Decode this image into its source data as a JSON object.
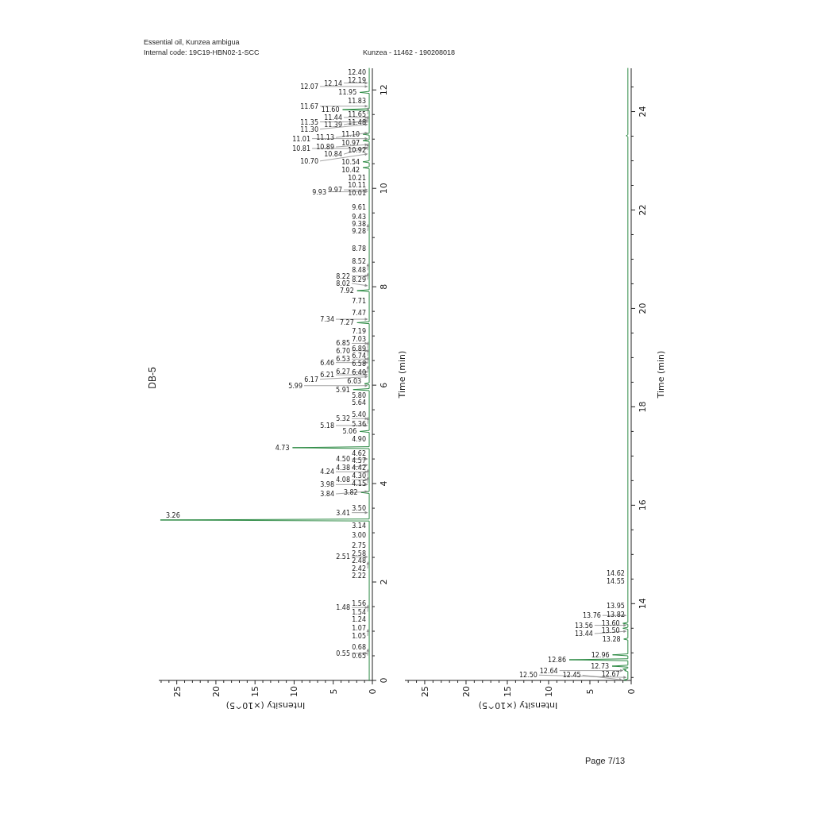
{
  "chart_data": [
    {
      "type": "line",
      "title": "Essential oil, Kunzea ambigua",
      "subtitle": "Internal code: 19C19-HBN02-1-SCC",
      "xlabel": "Intensity (×10^5)",
      "ylabel": "Time (min)",
      "color": "#2e8b45",
      "x": [
        0.4,
        0.4,
        27.1,
        0.4,
        0.4,
        1.45,
        0.4,
        0.4,
        10.2,
        0.4,
        0.4,
        1.6,
        0.4,
        0.4,
        2.45,
        0.4,
        0.4,
        1,
        0.4,
        0.4,
        1.95,
        0.4,
        0.4,
        1.95,
        0.4,
        0.4,
        1.2,
        0.4,
        0.4,
        1.2,
        0.4,
        0.4,
        1.2,
        0.4,
        0.4,
        1.2,
        0.4,
        0.4,
        3.8,
        0.4,
        0.4,
        1.6,
        0.4,
        0.4
      ],
      "values": [
        0,
        3.24,
        3.26,
        3.28,
        3.8,
        3.82,
        3.84,
        4.71,
        4.73,
        4.75,
        5.04,
        5.06,
        5.08,
        5.89,
        5.91,
        5.93,
        6.01,
        6.03,
        6.05,
        7.25,
        7.27,
        7.29,
        7.9,
        7.92,
        7.94,
        10.4,
        10.42,
        10.44,
        10.52,
        10.54,
        10.56,
        10.95,
        10.97,
        10.99,
        11.08,
        11.1,
        11.12,
        11.58,
        11.6,
        11.62,
        11.93,
        11.95,
        11.97,
        12.44
      ],
      "xlim": [
        27.3,
        0
      ],
      "ylim": [
        0,
        12.44
      ],
      "xticks": [
        {
          "value": 27,
          "label": null
        },
        {
          "value": 26,
          "label": null
        },
        25,
        {
          "value": 24,
          "label": null
        },
        {
          "value": 23,
          "label": null
        },
        {
          "value": 22,
          "label": null
        },
        {
          "value": 21,
          "label": null
        },
        20,
        {
          "value": 19,
          "label": null
        },
        {
          "value": 18,
          "label": null
        },
        {
          "value": 17,
          "label": null
        },
        {
          "value": 16,
          "label": null
        },
        15,
        {
          "value": 14,
          "label": null
        },
        {
          "value": 13,
          "label": null
        },
        {
          "value": 12,
          "label": null
        },
        {
          "value": 11,
          "label": null
        },
        10,
        {
          "value": 9,
          "label": null
        },
        {
          "value": 8,
          "label": null
        },
        {
          "value": 7,
          "label": null
        },
        {
          "value": 6,
          "label": null
        },
        5,
        {
          "value": 4,
          "label": null
        },
        {
          "value": 3,
          "label": null
        },
        {
          "value": 2,
          "label": null
        },
        {
          "value": 1,
          "label": null
        },
        0
      ],
      "yticks": [
        0,
        {
          "value": 0.5,
          "label": null
        },
        {
          "value": 1,
          "label": null
        },
        {
          "value": 1.5,
          "label": null
        },
        2,
        {
          "value": 2.5,
          "label": null
        },
        {
          "value": 3,
          "label": null
        },
        {
          "value": 3.5,
          "label": null
        },
        4,
        {
          "value": 4.5,
          "label": null
        },
        {
          "value": 5,
          "label": null
        },
        {
          "value": 5.5,
          "label": null
        },
        6,
        {
          "value": 6.5,
          "label": null
        },
        {
          "value": 7,
          "label": null
        },
        {
          "value": 7.5,
          "label": null
        },
        8,
        {
          "value": 8.5,
          "label": null
        },
        {
          "value": 9,
          "label": null
        },
        {
          "value": 9.5,
          "label": null
        },
        10,
        {
          "value": 10.5,
          "label": null
        },
        {
          "value": 11,
          "label": null
        },
        {
          "value": 11.5,
          "label": null
        },
        12
      ],
      "annotations": [
        "Kunzea - 11462 - 190208018",
        "DB-5",
        "Page 7/13",
        {
          "text": "12.40",
          "x": 0.4,
          "y": 12.4
        },
        {
          "text": "12.19",
          "x": 0.4,
          "y": 12.19
        },
        {
          "text": "12.14",
          "x": 0.4,
          "y": 12.14
        },
        {
          "text": "12.07",
          "x": 0.4,
          "y": 12.07
        },
        {
          "text": "11.95",
          "x": 1.6,
          "y": 11.95
        },
        {
          "text": "11.83",
          "x": 0.4,
          "y": 11.83
        },
        {
          "text": "11.67",
          "x": 0.4,
          "y": 11.67
        },
        {
          "text": "11.65",
          "x": 0.4,
          "y": 11.65
        },
        {
          "text": "11.60",
          "x": 3.8,
          "y": 11.6
        },
        {
          "text": "11.48",
          "x": 0.4,
          "y": 11.48
        },
        {
          "text": "11.44",
          "x": 0.4,
          "y": 11.44
        },
        {
          "text": "11.39",
          "x": 0.4,
          "y": 11.39
        },
        {
          "text": "11.35",
          "x": 0.4,
          "y": 11.35
        },
        {
          "text": "11.30",
          "x": 0.4,
          "y": 11.3
        },
        {
          "text": "11.13",
          "x": 0.4,
          "y": 11.13
        },
        {
          "text": "11.10",
          "x": 1.2,
          "y": 11.1
        },
        {
          "text": "11.01",
          "x": 0.4,
          "y": 11.01
        },
        {
          "text": "10.97",
          "x": 1.2,
          "y": 10.97
        },
        {
          "text": "10.92",
          "x": 0.4,
          "y": 10.92
        },
        {
          "text": "10.89",
          "x": 0.4,
          "y": 10.89
        },
        {
          "text": "10.84",
          "x": 0.4,
          "y": 10.84
        },
        {
          "text": "10.81",
          "x": 0.4,
          "y": 10.81
        },
        {
          "text": "10.70",
          "x": 0.4,
          "y": 10.7
        },
        {
          "text": "10.54",
          "x": 1.2,
          "y": 10.54
        },
        {
          "text": "10.42",
          "x": 1.2,
          "y": 10.42
        },
        {
          "text": "10.21",
          "x": 0.4,
          "y": 10.21
        },
        {
          "text": "10.11",
          "x": 0.4,
          "y": 10.11
        },
        {
          "text": "10.01",
          "x": 0.4,
          "y": 10.01
        },
        {
          "text": "9.97",
          "x": 0.4,
          "y": 9.97
        },
        {
          "text": "9.93",
          "x": 0.4,
          "y": 9.93
        },
        {
          "text": "9.61",
          "x": 0.4,
          "y": 9.61
        },
        {
          "text": "9.43",
          "x": 0.4,
          "y": 9.43
        },
        {
          "text": "9.38",
          "x": 0.4,
          "y": 9.38
        },
        {
          "text": "9.28",
          "x": 0.4,
          "y": 9.28
        },
        {
          "text": "8.78",
          "x": 0.4,
          "y": 8.78
        },
        {
          "text": "8.52",
          "x": 0.4,
          "y": 8.52
        },
        {
          "text": "8.48",
          "x": 0.4,
          "y": 8.48
        },
        {
          "text": "8.29",
          "x": 0.4,
          "y": 8.29
        },
        {
          "text": "8.22",
          "x": 0.4,
          "y": 8.22
        },
        {
          "text": "8.02",
          "x": 0.4,
          "y": 8.02
        },
        {
          "text": "7.92",
          "x": 1.95,
          "y": 7.92
        },
        {
          "text": "7.71",
          "x": 0.4,
          "y": 7.71
        },
        {
          "text": "7.47",
          "x": 0.4,
          "y": 7.47
        },
        {
          "text": "7.34",
          "x": 0.4,
          "y": 7.34
        },
        {
          "text": "7.27",
          "x": 1.95,
          "y": 7.27
        },
        {
          "text": "7.19",
          "x": 0.4,
          "y": 7.19
        },
        {
          "text": "7.03",
          "x": 0.4,
          "y": 7.03
        },
        {
          "text": "6.89",
          "x": 0.4,
          "y": 6.89
        },
        {
          "text": "6.85",
          "x": 0.4,
          "y": 6.85
        },
        {
          "text": "6.74",
          "x": 0.4,
          "y": 6.74
        },
        {
          "text": "6.70",
          "x": 0.4,
          "y": 6.7
        },
        {
          "text": "6.58",
          "x": 0.4,
          "y": 6.58
        },
        {
          "text": "6.53",
          "x": 0.4,
          "y": 6.53
        },
        {
          "text": "6.46",
          "x": 0.4,
          "y": 6.46
        },
        {
          "text": "6.40",
          "x": 0.4,
          "y": 6.4
        },
        {
          "text": "6.27",
          "x": 0.4,
          "y": 6.27
        },
        {
          "text": "6.21",
          "x": 0.4,
          "y": 6.21
        },
        {
          "text": "6.17",
          "x": 0.4,
          "y": 6.17
        },
        {
          "text": "6.03",
          "x": 1,
          "y": 6.03
        },
        {
          "text": "5.99",
          "x": 0.4,
          "y": 5.99
        },
        {
          "text": "5.91",
          "x": 2.45,
          "y": 5.91
        },
        {
          "text": "5.80",
          "x": 0.4,
          "y": 5.8
        },
        {
          "text": "5.64",
          "x": 0.4,
          "y": 5.64
        },
        {
          "text": "5.40",
          "x": 0.4,
          "y": 5.4
        },
        {
          "text": "5.36",
          "x": 0.4,
          "y": 5.36
        },
        {
          "text": "5.32",
          "x": 0.4,
          "y": 5.32
        },
        {
          "text": "5.18",
          "x": 0.4,
          "y": 5.18
        },
        {
          "text": "5.06",
          "x": 1.6,
          "y": 5.06
        },
        {
          "text": "4.90",
          "x": 0.4,
          "y": 4.9
        },
        {
          "text": "4.73",
          "x": 10.2,
          "y": 4.73
        },
        {
          "text": "4.62",
          "x": 0.4,
          "y": 4.62
        },
        {
          "text": "4.57",
          "x": 0.4,
          "y": 4.57
        },
        {
          "text": "4.50",
          "x": 0.4,
          "y": 4.5
        },
        {
          "text": "4.42",
          "x": 0.4,
          "y": 4.42
        },
        {
          "text": "4.38",
          "x": 0.4,
          "y": 4.38
        },
        {
          "text": "4.30",
          "x": 0.4,
          "y": 4.3
        },
        {
          "text": "4.24",
          "x": 0.4,
          "y": 4.24
        },
        {
          "text": "4.15",
          "x": 0.4,
          "y": 4.15
        },
        {
          "text": "4.08",
          "x": 0.4,
          "y": 4.08
        },
        {
          "text": "3.98",
          "x": 0.4,
          "y": 3.98
        },
        {
          "text": "3.84",
          "x": 0.4,
          "y": 3.84
        },
        {
          "text": "3.82",
          "x": 1.45,
          "y": 3.82
        },
        {
          "text": "3.50",
          "x": 0.4,
          "y": 3.5
        },
        {
          "text": "3.41",
          "x": 0.4,
          "y": 3.41
        },
        {
          "text": "3.26",
          "x": 27.1,
          "y": 3.26
        },
        {
          "text": "3.14",
          "x": 0.4,
          "y": 3.14
        },
        {
          "text": "3.00",
          "x": 0.4,
          "y": 3
        },
        {
          "text": "2.75",
          "x": 0.4,
          "y": 2.75
        },
        {
          "text": "2.58",
          "x": 0.4,
          "y": 2.58
        },
        {
          "text": "2.51",
          "x": 0.4,
          "y": 2.51
        },
        {
          "text": "2.48",
          "x": 0.4,
          "y": 2.48
        },
        {
          "text": "2.42",
          "x": 0.4,
          "y": 2.42
        },
        {
          "text": "2.22",
          "x": 0.4,
          "y": 2.22
        },
        {
          "text": "1.56",
          "x": 0.4,
          "y": 1.56
        },
        {
          "text": "1.54",
          "x": 0.4,
          "y": 1.54
        },
        {
          "text": "1.48",
          "x": 0.4,
          "y": 1.48
        },
        {
          "text": "1.24",
          "x": 0.4,
          "y": 1.24
        },
        {
          "text": "1.07",
          "x": 0.4,
          "y": 1.07
        },
        {
          "text": "1.05",
          "x": 0.4,
          "y": 1.05
        },
        {
          "text": "0.68",
          "x": 0.4,
          "y": 0.68
        },
        {
          "text": "0.65",
          "x": 0.4,
          "y": 0.65
        },
        {
          "text": "0.55",
          "x": 0.4,
          "y": 0.55
        }
      ]
    },
    {
      "type": "line",
      "xlabel": "Intensity (×10^5)",
      "ylabel": "Time (min)",
      "color": "#2e8b45",
      "x": [
        0.6,
        0.9,
        0.4,
        0.4,
        0.8,
        0.6,
        1,
        0.4,
        0.4,
        2.3,
        0.4,
        0.4,
        7.5,
        0.4,
        0.4,
        2.25,
        0.4,
        0.4,
        0.9,
        0.4,
        0.4,
        1,
        0.4,
        0.4,
        1,
        0.4,
        0.4,
        0.6,
        0.4,
        0.4
      ],
      "values": [
        12.44,
        12.45,
        12.47,
        12.62,
        12.64,
        12.65,
        12.67,
        12.69,
        12.71,
        12.73,
        12.75,
        12.84,
        12.86,
        12.88,
        12.94,
        12.96,
        12.98,
        13.26,
        13.28,
        13.3,
        13.48,
        13.5,
        13.52,
        13.58,
        13.6,
        13.62,
        23.49,
        23.51,
        23.53,
        24.88
      ],
      "xlim": [
        27.4,
        0
      ],
      "ylim": [
        12.44,
        24.88
      ],
      "xticks": [
        {
          "value": 27,
          "label": null
        },
        {
          "value": 26,
          "label": null
        },
        25,
        {
          "value": 24,
          "label": null
        },
        {
          "value": 23,
          "label": null
        },
        {
          "value": 22,
          "label": null
        },
        {
          "value": 21,
          "label": null
        },
        20,
        {
          "value": 19,
          "label": null
        },
        {
          "value": 18,
          "label": null
        },
        {
          "value": 17,
          "label": null
        },
        {
          "value": 16,
          "label": null
        },
        15,
        {
          "value": 14,
          "label": null
        },
        {
          "value": 13,
          "label": null
        },
        {
          "value": 12,
          "label": null
        },
        {
          "value": 11,
          "label": null
        },
        10,
        {
          "value": 9,
          "label": null
        },
        {
          "value": 8,
          "label": null
        },
        {
          "value": 7,
          "label": null
        },
        {
          "value": 6,
          "label": null
        },
        5,
        {
          "value": 4,
          "label": null
        },
        {
          "value": 3,
          "label": null
        },
        {
          "value": 2,
          "label": null
        },
        {
          "value": 1,
          "label": null
        },
        0
      ],
      "yticks": [
        {
          "value": 12.5,
          "label": null
        },
        {
          "value": 13,
          "label": null
        },
        {
          "value": 13.5,
          "label": null
        },
        14,
        {
          "value": 14.5,
          "label": null
        },
        {
          "value": 15,
          "label": null
        },
        {
          "value": 15.5,
          "label": null
        },
        16,
        {
          "value": 16.5,
          "label": null
        },
        {
          "value": 17,
          "label": null
        },
        {
          "value": 17.5,
          "label": null
        },
        18,
        {
          "value": 18.5,
          "label": null
        },
        {
          "value": 19,
          "label": null
        },
        {
          "value": 19.5,
          "label": null
        },
        20,
        {
          "value": 20.5,
          "label": null
        },
        {
          "value": 21,
          "label": null
        },
        {
          "value": 21.5,
          "label": null
        },
        22,
        {
          "value": 22.5,
          "label": null
        },
        {
          "value": 23,
          "label": null
        },
        {
          "value": 23.5,
          "label": null
        },
        24,
        {
          "value": 24.5,
          "label": null
        }
      ],
      "annotations": [
        {
          "text": "14.62",
          "x": 0.4,
          "y": 14.62
        },
        {
          "text": "14.55",
          "x": 0.4,
          "y": 14.55
        },
        {
          "text": "13.95",
          "x": 0.4,
          "y": 13.95
        },
        {
          "text": "13.82",
          "x": 0.4,
          "y": 13.82
        },
        {
          "text": "13.76",
          "x": 0.4,
          "y": 13.76
        },
        {
          "text": "13.60",
          "x": 1,
          "y": 13.6
        },
        {
          "text": "13.56",
          "x": 0.4,
          "y": 13.56
        },
        {
          "text": "13.50",
          "x": 1,
          "y": 13.5
        },
        {
          "text": "13.44",
          "x": 0.4,
          "y": 13.44
        },
        {
          "text": "13.28",
          "x": 0.9,
          "y": 13.28
        },
        {
          "text": "12.96",
          "x": 2.25,
          "y": 12.96
        },
        {
          "text": "12.86",
          "x": 7.5,
          "y": 12.86
        },
        {
          "text": "12.73",
          "x": 2.3,
          "y": 12.73
        },
        {
          "text": "12.67",
          "x": 1,
          "y": 12.67
        },
        {
          "text": "12.64",
          "x": 0.8,
          "y": 12.64
        },
        {
          "text": "12.50",
          "x": 0.4,
          "y": 12.5
        },
        {
          "text": "12.45",
          "x": 0.9,
          "y": 12.45
        }
      ]
    }
  ]
}
